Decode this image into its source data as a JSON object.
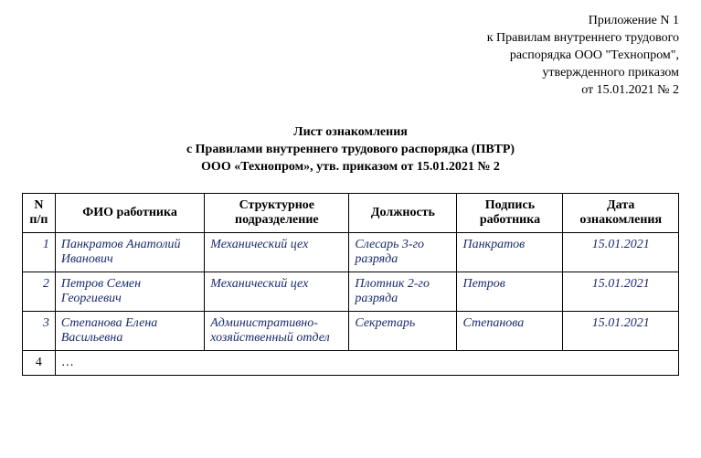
{
  "header": {
    "line1": "Приложение N 1",
    "line2": "к Правилам внутреннего трудового",
    "line3": "распорядка ООО \"Технопром\",",
    "line4": "утвержденного приказом",
    "line5": "от 15.01.2021 № 2"
  },
  "title": {
    "line1": "Лист ознакомления",
    "line2": "с Правилами внутреннего трудового распорядка (ПВТР)",
    "line3": "ООО «Технопром», утв. приказом от 15.01.2021 № 2"
  },
  "table": {
    "columns": {
      "num": "N п/п",
      "fio": "ФИО работника",
      "dept": "Структурное подразделение",
      "pos": "Должность",
      "sign": "Подпись работника",
      "date": "Дата ознакомления"
    },
    "rows": [
      {
        "num": "1",
        "fio": "Панкратов Анатолий Иванович",
        "dept": "Механический цех",
        "pos": "Слесарь 3-го разряда",
        "sign": "Панкратов",
        "date": "15.01.2021"
      },
      {
        "num": "2",
        "fio": "Петров Семен Георгиевич",
        "dept": "Механический цех",
        "pos": "Плотник 2-го разряда",
        "sign": "Петров",
        "date": "15.01.2021"
      },
      {
        "num": "3",
        "fio": "Степанова Елена Васильевна",
        "dept": "Административно-хозяйственный отдел",
        "pos": "Секретарь",
        "sign": "Степанова",
        "date": "15.01.2021"
      }
    ],
    "trailing": {
      "num": "4",
      "rest": "…"
    }
  },
  "style": {
    "data_text_color": "#1a2a6c",
    "border_color": "#000000",
    "background_color": "#ffffff"
  }
}
